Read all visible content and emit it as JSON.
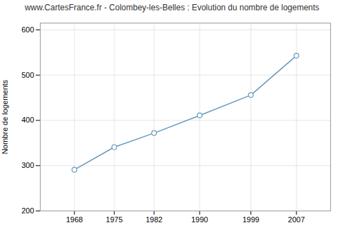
{
  "chart_data": {
    "type": "line",
    "title": "www.CartesFrance.fr - Colombey-les-Belles : Evolution du nombre de logements",
    "ylabel": "Nombre de logements",
    "x": [
      1968,
      1975,
      1982,
      1990,
      1999,
      2007
    ],
    "values": [
      291,
      341,
      372,
      411,
      456,
      543
    ],
    "color": "#6699bb",
    "marker": "circle",
    "line_style": "solid",
    "xlim": [
      1962,
      2013
    ],
    "xticks": [
      1968,
      1975,
      1982,
      1990,
      1999,
      2007
    ],
    "ylim": [
      200,
      615
    ],
    "yticks": [
      200,
      300,
      400,
      500,
      600
    ],
    "grid": true
  }
}
